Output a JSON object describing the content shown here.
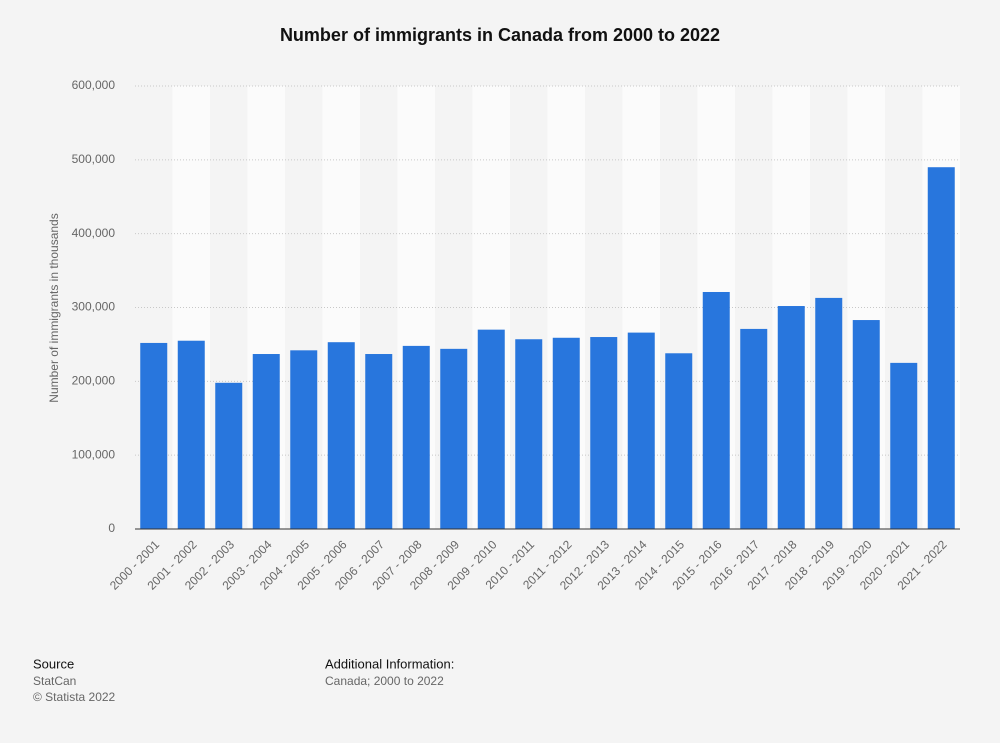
{
  "chart_data": {
    "type": "bar",
    "title": "Number of immigrants in Canada from 2000 to 2022",
    "y_label": "Number of immigrants in thousands",
    "categories": [
      "2000 - 2001",
      "2001 - 2002",
      "2002 - 2003",
      "2003 - 2004",
      "2004 - 2005",
      "2005 - 2006",
      "2006 - 2007",
      "2007 - 2008",
      "2008 - 2009",
      "2009 - 2010",
      "2010 - 2011",
      "2011 - 2012",
      "2012 - 2013",
      "2013 - 2014",
      "2014 - 2015",
      "2015 - 2016",
      "2016 - 2017",
      "2017 - 2018",
      "2018 - 2019",
      "2019 - 2020",
      "2020 - 2021",
      "2021 - 2022"
    ],
    "values": [
      252000,
      255000,
      198000,
      237000,
      242000,
      253000,
      237000,
      248000,
      244000,
      270000,
      257000,
      259000,
      260000,
      266000,
      238000,
      321000,
      271000,
      302000,
      313000,
      283000,
      225000,
      490000
    ],
    "color": "#2876dd",
    "ylim": [
      0,
      600000
    ],
    "yticks": [
      0,
      {
        "value": 100000,
        "label": "100,000"
      },
      {
        "value": 200000,
        "label": "200,000"
      },
      {
        "value": 300000,
        "label": "300,000"
      },
      {
        "value": 400000,
        "label": "400,000"
      },
      {
        "value": 500000,
        "label": "500,000"
      },
      {
        "value": 600000,
        "label": "600,000"
      }
    ],
    "grid": true
  },
  "footer": {
    "source_title": "Source",
    "source": "StatCan",
    "copyright": "© Statista 2022",
    "info_title": "Additional Information:",
    "info": "Canada; 2000 to 2022"
  }
}
